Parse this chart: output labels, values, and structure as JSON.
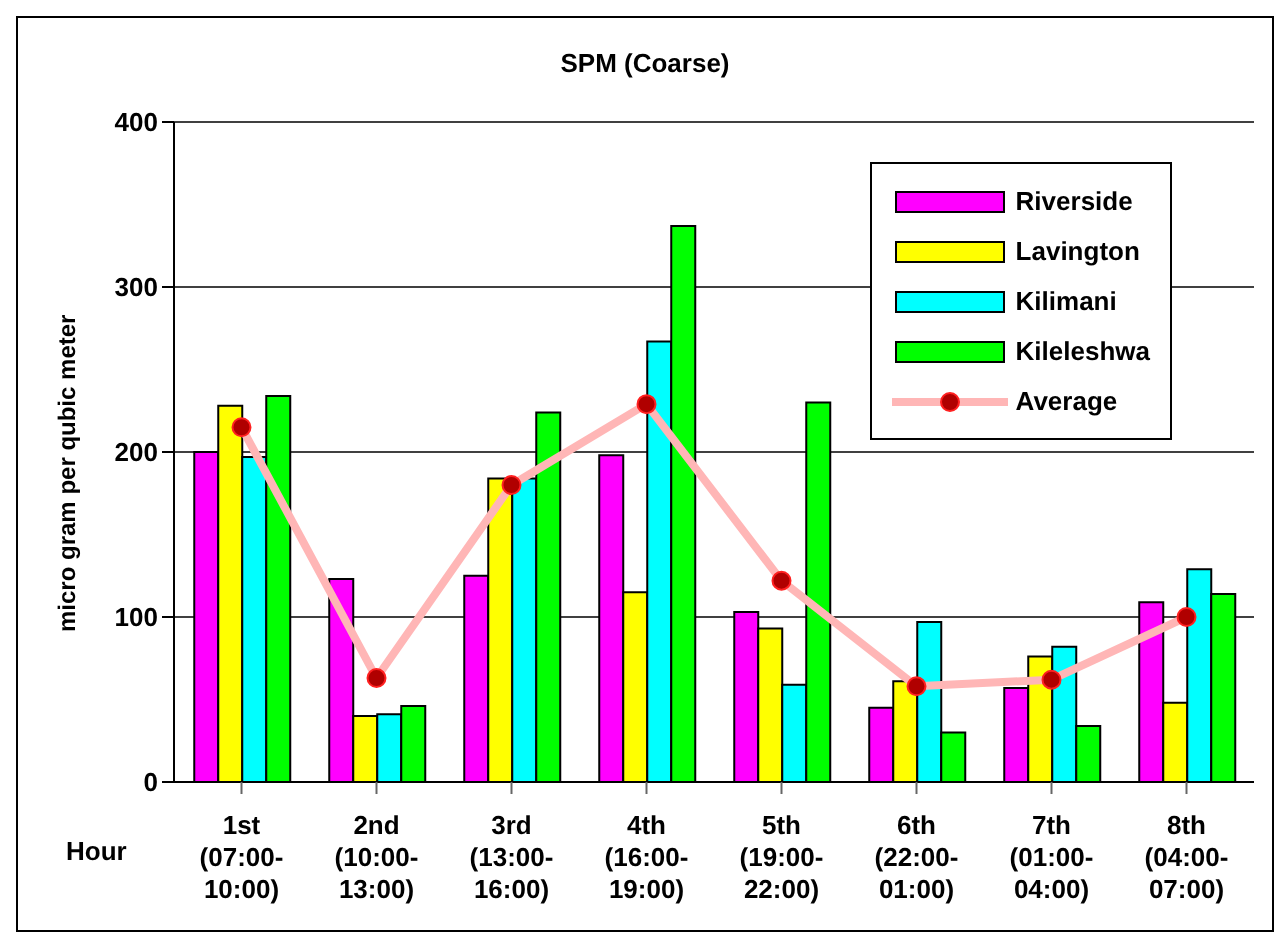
{
  "chart_data": {
    "type": "bar",
    "title": "SPM (Coarse)",
    "xlabel": "Hour",
    "ylabel": "micro gram per qubic meter",
    "categories": [
      "1st (07:00-10:00)",
      "2nd (10:00-13:00)",
      "3rd (13:00-16:00)",
      "4th (16:00-19:00)",
      "5th (19:00-22:00)",
      "6th (22:00-01:00)",
      "7th (01:00-04:00)",
      "8th (04:00-07:00)"
    ],
    "series": [
      {
        "name": "Riverside",
        "color": "#ff00ff",
        "values": [
          200,
          123,
          125,
          198,
          103,
          45,
          57,
          109
        ]
      },
      {
        "name": "Lavington",
        "color": "#ffff00",
        "values": [
          228,
          40,
          184,
          115,
          93,
          61,
          76,
          48
        ]
      },
      {
        "name": "Kilimani",
        "color": "#00ffff",
        "values": [
          197,
          41,
          184,
          267,
          59,
          97,
          82,
          129
        ]
      },
      {
        "name": "Kileleshwa",
        "color": "#00ff00",
        "values": [
          234,
          46,
          224,
          337,
          230,
          30,
          34,
          114
        ]
      },
      {
        "name": "Average",
        "type": "line",
        "color": "#ffb6b6",
        "marker": "circle",
        "values": [
          215,
          63,
          180,
          229,
          122,
          58,
          62,
          100
        ]
      }
    ],
    "ylim": [
      0,
      400
    ],
    "yticks": [
      0,
      100,
      200,
      300,
      400
    ],
    "grid": "y",
    "legend": "top right"
  }
}
